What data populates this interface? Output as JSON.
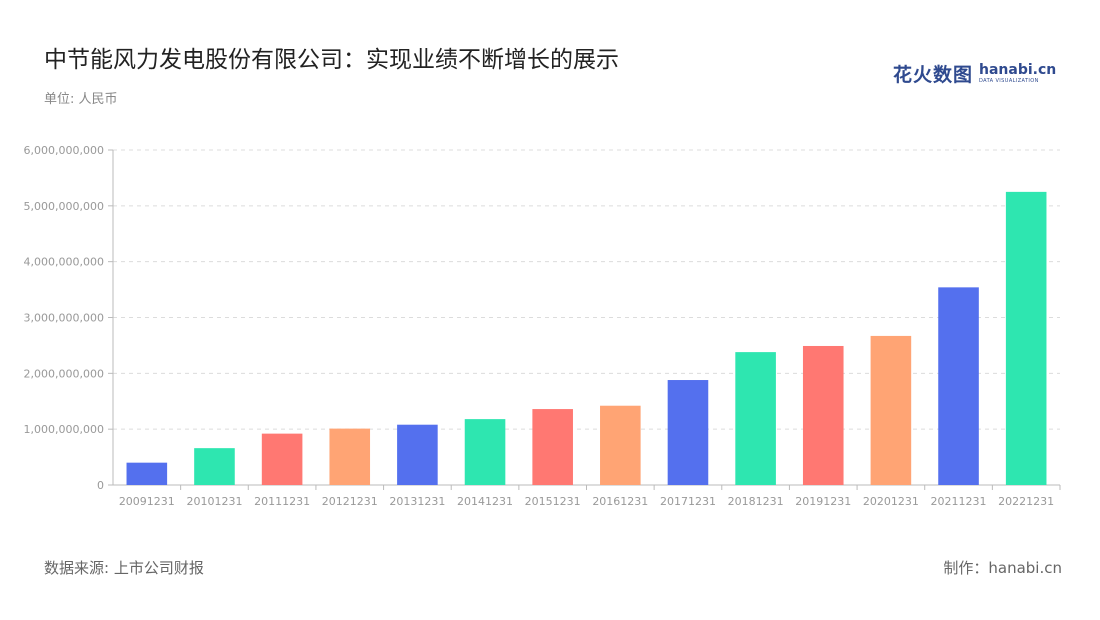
{
  "title": "中节能风力发电股份有限公司：实现业绩不断增长的展示",
  "subtitle": "单位: 人民币",
  "logo": {
    "cn": "花火数图",
    "en": "hanabi.cn",
    "en_sub": "DATA VISUALIZATION"
  },
  "source": "数据来源: 上市公司财报",
  "credit": "制作：hanabi.cn",
  "chart_data": {
    "type": "bar",
    "categories": [
      "20091231",
      "20101231",
      "20111231",
      "20121231",
      "20131231",
      "20141231",
      "20151231",
      "20161231",
      "20171231",
      "20181231",
      "20191231",
      "20201231",
      "20211231",
      "20221231"
    ],
    "values": [
      400000000,
      660000000,
      920000000,
      1010000000,
      1080000000,
      1180000000,
      1360000000,
      1420000000,
      1880000000,
      2380000000,
      2490000000,
      2670000000,
      3540000000,
      5250000000
    ],
    "colors": [
      "#5470ee",
      "#2ee6b0",
      "#ff7872",
      "#ffa474",
      "#5470ee",
      "#2ee6b0",
      "#ff7872",
      "#ffa474",
      "#5470ee",
      "#2ee6b0",
      "#ff7872",
      "#ffa474",
      "#5470ee",
      "#2ee6b0"
    ],
    "yticks": [
      "0",
      "1,000,000,000",
      "2,000,000,000",
      "3,000,000,000",
      "4,000,000,000",
      "5,000,000,000",
      "6,000,000,000"
    ],
    "ylim": [
      0,
      6000000000
    ],
    "grid": true
  }
}
